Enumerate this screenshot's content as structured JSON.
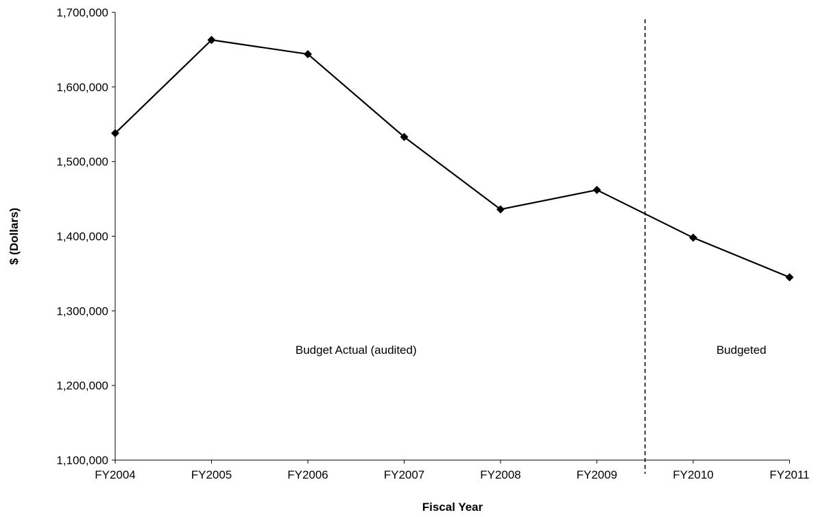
{
  "chart_data": {
    "type": "line",
    "title": "",
    "xlabel": "Fiscal Year",
    "ylabel": "$ (Dollars)",
    "ylim": [
      1100000,
      1700000
    ],
    "yticks": [
      1100000,
      1200000,
      1300000,
      1400000,
      1500000,
      1600000,
      1700000
    ],
    "ytick_labels": [
      "1,100,000",
      "1,200,000",
      "1,300,000",
      "1,400,000",
      "1,500,000",
      "1,600,000",
      "1,700,000"
    ],
    "categories": [
      "FY2004",
      "FY2005",
      "FY2006",
      "FY2007",
      "FY2008",
      "FY2009",
      "FY2010",
      "FY2011"
    ],
    "series": [
      {
        "values": [
          1538000,
          1663000,
          1644000,
          1533000,
          1436000,
          1462000,
          1398000,
          1345000
        ],
        "color": "#000000",
        "marker": "diamond"
      }
    ],
    "divider": {
      "between": [
        "FY2009",
        "FY2010"
      ],
      "style": "dashed"
    },
    "annotations": [
      {
        "text": "Budget Actual (audited)",
        "region": "FY2004-FY2009"
      },
      {
        "text": "Budgeted",
        "region": "FY2010-FY2011"
      }
    ],
    "grid": false,
    "legend": "none"
  }
}
